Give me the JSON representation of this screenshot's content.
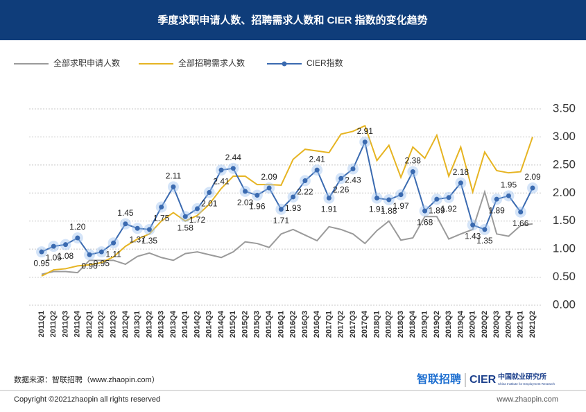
{
  "chart_data": {
    "type": "line",
    "title": "季度求职申请人数、招聘需求人数和 CIER 指数的变化趋势",
    "categories": [
      "2011Q1",
      "2011Q2",
      "2011Q3",
      "2011Q4",
      "2012Q1",
      "2012Q2",
      "2012Q3",
      "2012Q4",
      "2013Q1",
      "2013Q2",
      "2013Q3",
      "2013Q4",
      "2014Q1",
      "2014Q2",
      "2014Q3",
      "2014Q4",
      "2015Q1",
      "2015Q2",
      "2015Q3",
      "2015Q4",
      "2016Q1",
      "2016Q2",
      "2016Q3",
      "2016Q4",
      "2017Q1",
      "2017Q2",
      "2017Q3",
      "2017Q4",
      "2018Q1",
      "2018Q2",
      "2018Q3",
      "2018Q4",
      "2019Q1",
      "2019Q2",
      "2019Q3",
      "2019Q4",
      "2020Q1",
      "2020Q2",
      "2020Q3",
      "2020Q4",
      "2021Q1",
      "2021Q2"
    ],
    "series": [
      {
        "name": "全部求职申请人数",
        "color": "#9a9a9a",
        "values": [
          0.55,
          0.6,
          0.6,
          0.58,
          0.8,
          0.8,
          0.8,
          0.73,
          0.87,
          0.93,
          0.85,
          0.8,
          0.92,
          0.95,
          0.9,
          0.85,
          0.95,
          1.13,
          1.1,
          1.03,
          1.27,
          1.35,
          1.25,
          1.15,
          1.4,
          1.35,
          1.27,
          1.1,
          1.33,
          1.5,
          1.16,
          1.2,
          1.58,
          1.58,
          1.18,
          1.27,
          1.35,
          2.02,
          1.27,
          1.23,
          1.42,
          1.45
        ]
      },
      {
        "name": "全部招聘需求人数",
        "color": "#e6b422",
        "values": [
          0.52,
          0.63,
          0.65,
          0.7,
          0.72,
          0.76,
          0.86,
          1.05,
          1.18,
          1.27,
          1.5,
          1.65,
          1.5,
          1.6,
          1.8,
          2.08,
          2.3,
          2.3,
          2.15,
          2.15,
          2.14,
          2.6,
          2.78,
          2.75,
          2.72,
          3.05,
          3.1,
          3.2,
          2.58,
          2.85,
          2.28,
          2.82,
          2.62,
          3.03,
          2.3,
          2.82,
          2.02,
          2.73,
          2.4,
          2.36,
          2.38,
          3.0
        ]
      },
      {
        "name": "CIER指数",
        "color": "#3a6ab0",
        "markers": true,
        "values": [
          0.95,
          1.05,
          1.08,
          1.2,
          0.9,
          0.95,
          1.11,
          1.45,
          1.37,
          1.35,
          1.75,
          2.11,
          1.58,
          1.72,
          2.01,
          2.41,
          2.44,
          2.03,
          1.96,
          2.09,
          1.71,
          1.93,
          2.22,
          2.41,
          1.91,
          2.26,
          2.43,
          2.91,
          1.91,
          1.88,
          1.97,
          2.38,
          1.68,
          1.89,
          1.92,
          2.18,
          1.43,
          1.35,
          1.89,
          1.95,
          1.66,
          2.09
        ],
        "value_labels": [
          "0.95",
          "1.05",
          "1.08",
          "1.20",
          "0.90",
          "0.95",
          "1.11",
          "1.45",
          "1.37",
          "1.35",
          "1.75",
          "2.11",
          "1.58",
          "1.72",
          "2.01",
          "2.41",
          "2.44",
          "2.03",
          "1.96",
          "2.09",
          "1.71",
          "1.93",
          "2.22",
          "2.41",
          "1.91",
          "2.26",
          "2.43",
          "2.91",
          "1.91",
          "1.88",
          "1.97",
          "2.38",
          "1.68",
          "1.89",
          "1.92",
          "2.18",
          "1.43",
          "1.35",
          "1.89",
          "1.95",
          "1.66",
          "2.09"
        ]
      }
    ],
    "ylim": [
      0,
      3.5
    ],
    "yticks": [
      {
        "value": 0,
        "label": "0.00"
      },
      {
        "value": 0.5,
        "label": "0.50"
      },
      {
        "value": 1,
        "label": "1.00"
      },
      {
        "value": 1.5,
        "label": "1.50"
      },
      {
        "value": 2,
        "label": "2.00"
      },
      {
        "value": 2.5,
        "label": "2.50"
      },
      {
        "value": 3,
        "label": "3.00"
      },
      {
        "value": 3.5,
        "label": "3.50"
      }
    ],
    "grid": true,
    "legend": "top-left"
  },
  "footer": {
    "source": "数据来源：智联招聘（www.zhaopin.com）",
    "logo_brand": "智联招聘",
    "logo_cier": "CIER",
    "logo_institute": "中国就业研究所",
    "logo_institute_en": "China Institute for Employment Research",
    "copyright": "Copyright ©2021zhaopin all rights reserved",
    "url": "www.zhaopin.com"
  }
}
